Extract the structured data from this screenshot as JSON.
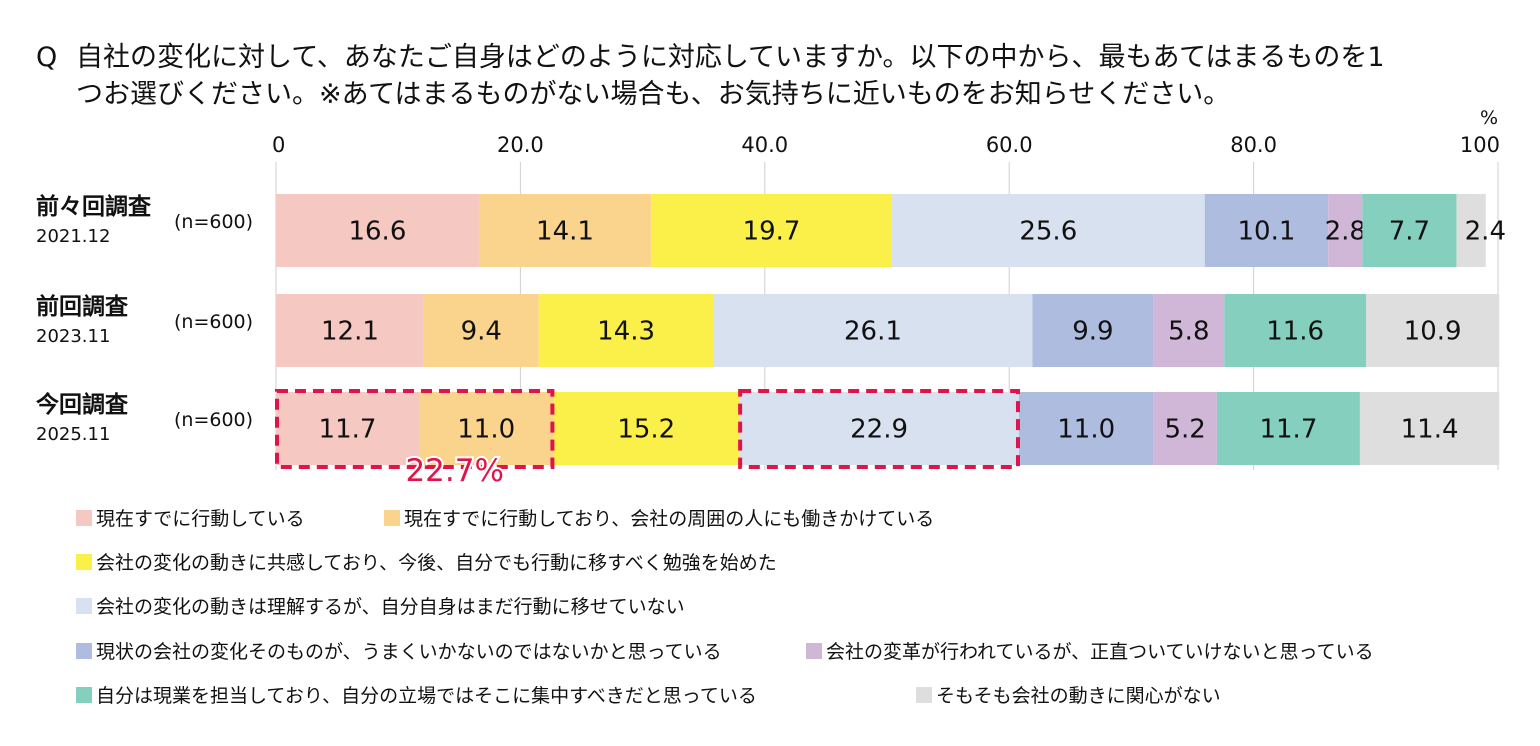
{
  "question": {
    "mark": "Q",
    "line1": "自社の変化に対して、あなたご自身はどのように対応していますか。以下の中から、最もあてはまるものを1",
    "line2": "つお選びください。※あてはまるものがない場合も、お気持ちに近いものをお知らせください。"
  },
  "chart_data": {
    "type": "bar",
    "orientation": "horizontal-stacked-100",
    "xlim": [
      0,
      100
    ],
    "x_unit": "%",
    "x_ticks": [
      "0",
      "20.0",
      "40.0",
      "60.0",
      "80.0",
      "100"
    ],
    "grid": true,
    "legend_position": "bottom",
    "rows": [
      {
        "name": "前々回調査",
        "date": "2021.12",
        "n": "(n=600)",
        "values": [
          16.6,
          14.1,
          19.7,
          25.6,
          10.1,
          2.8,
          7.7,
          2.4
        ],
        "labels": [
          "16.6",
          "14.1",
          "19.7",
          "25.6",
          "10.1",
          "2.8",
          "7.7",
          "2.4"
        ]
      },
      {
        "name": "前回調査",
        "date": "2023.11",
        "n": "(n=600)",
        "values": [
          12.1,
          9.4,
          14.3,
          26.1,
          9.9,
          5.8,
          11.6,
          10.9
        ],
        "labels": [
          "12.1",
          "9.4",
          "14.3",
          "26.1",
          "9.9",
          "5.8",
          "11.6",
          "10.9"
        ]
      },
      {
        "name": "今回調査",
        "date": "2025.11",
        "n": "(n=600)",
        "values": [
          11.7,
          11.0,
          15.2,
          22.9,
          11.0,
          5.2,
          11.7,
          11.4
        ],
        "labels": [
          "11.7",
          "11.0",
          "15.2",
          "22.9",
          "11.0",
          "5.2",
          "11.7",
          "11.4"
        ]
      }
    ],
    "series": [
      {
        "name": "現在すでに行動している",
        "color": "#f5c8c1"
      },
      {
        "name": "現在すでに行動しており、会社の周囲の人にも働きかけている",
        "color": "#fad38d"
      },
      {
        "name": "会社の変化の動きに共感しており、今後、自分でも行動に移すべく勉強を始めた",
        "color": "#fbf04a"
      },
      {
        "name": "会社の変化の動きは理解するが、自分自身はまだ行動に移せていない",
        "color": "#d7e1f0"
      },
      {
        "name": "現状の会社の変化そのものが、うまくいかないのではないかと思っている",
        "color": "#aebcdf"
      },
      {
        "name": "会社の変革が行われているが、正直ついていけないと思っている",
        "color": "#d0b7d8"
      },
      {
        "name": "自分は現業を担当しており、自分の立場ではそこに集中すべきだと思っている",
        "color": "#84cfbe"
      },
      {
        "name": "そもそも会社の動きに関心がない",
        "color": "#dedede"
      }
    ],
    "annotations": [
      {
        "type": "highlight-box",
        "row": 2,
        "segments": [
          0,
          1
        ],
        "label": "22.7%",
        "color": "#e0144c"
      },
      {
        "type": "highlight-box",
        "row": 2,
        "segments": [
          3
        ],
        "label": "",
        "color": "#e0144c"
      }
    ]
  }
}
